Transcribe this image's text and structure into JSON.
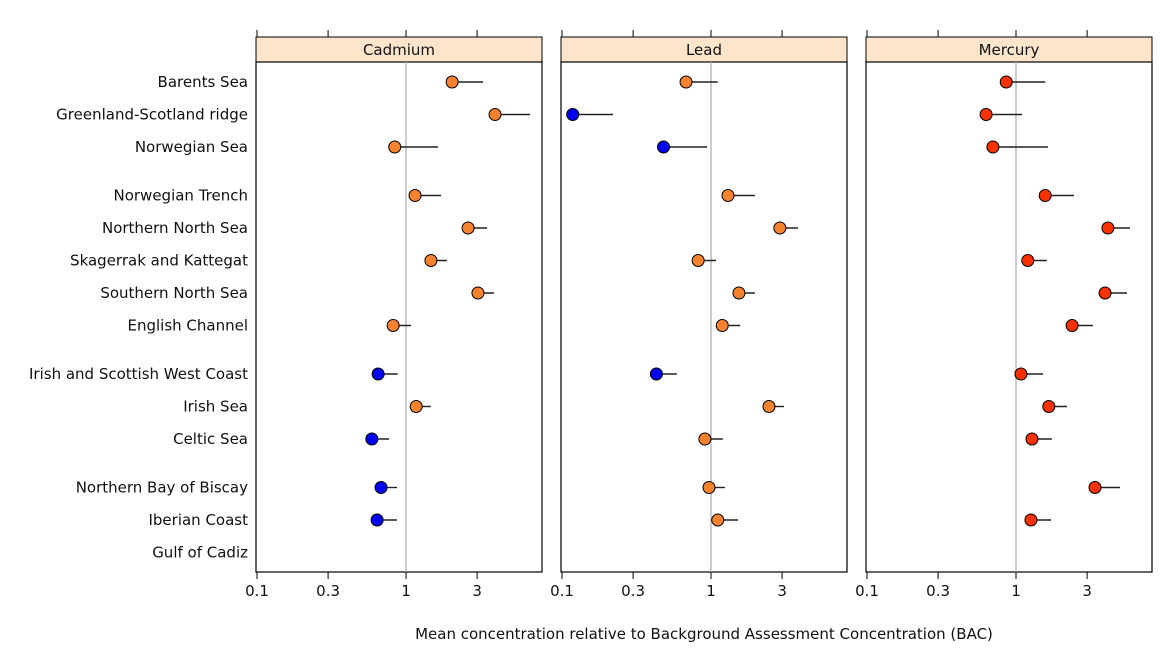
{
  "chart_data": {
    "type": "scatter",
    "subtype": "dot-plot with upper confidence bars",
    "xlabel": "Mean concentration relative to Background Assessment Concentration (BAC)",
    "x_scale": "log",
    "xlim": [
      0.1,
      8.2
    ],
    "x_ticks": [
      0.1,
      0.3,
      1,
      3
    ],
    "x_tick_labels": [
      "0.1",
      "0.3",
      "1",
      "3"
    ],
    "reference_line": 1,
    "grid": false,
    "colors": {
      "blue": "#0000ee",
      "orange": "#f5822e",
      "red": "#f53200",
      "strip": "#fde5cc",
      "reference": "#b0b0b0"
    },
    "categories": [
      "Barents Sea",
      "Greenland-Scotland ridge",
      "Norwegian Sea",
      "Norwegian Trench",
      "Northern North Sea",
      "Skagerrak and Kattegat",
      "Southern North Sea",
      "English Channel",
      "Irish and Scottish West Coast",
      "Irish Sea",
      "Celtic Sea",
      "Northern Bay of Biscay",
      "Iberian Coast",
      "Gulf of Cadiz"
    ],
    "groups": [
      [
        0,
        1,
        2
      ],
      [
        3,
        4,
        5,
        6,
        7
      ],
      [
        8,
        9,
        10
      ],
      [
        11,
        12,
        13
      ]
    ],
    "panels": [
      {
        "title": "Cadmium",
        "points": [
          {
            "mean": 2.04,
            "upper": 3.29,
            "color": "orange"
          },
          {
            "mean": 3.96,
            "upper": 6.8,
            "color": "orange"
          },
          {
            "mean": 0.84,
            "upper": 1.64,
            "color": "orange"
          },
          {
            "mean": 1.15,
            "upper": 1.72,
            "color": "orange"
          },
          {
            "mean": 2.61,
            "upper": 3.5,
            "color": "orange"
          },
          {
            "mean": 1.47,
            "upper": 1.88,
            "color": "orange"
          },
          {
            "mean": 3.04,
            "upper": 3.9,
            "color": "orange"
          },
          {
            "mean": 0.82,
            "upper": 1.08,
            "color": "orange"
          },
          {
            "mean": 0.65,
            "upper": 0.88,
            "color": "blue"
          },
          {
            "mean": 1.17,
            "upper": 1.47,
            "color": "orange"
          },
          {
            "mean": 0.59,
            "upper": 0.77,
            "color": "blue"
          },
          {
            "mean": 0.68,
            "upper": 0.87,
            "color": "blue"
          },
          {
            "mean": 0.64,
            "upper": 0.87,
            "color": "blue"
          },
          null
        ]
      },
      {
        "title": "Lead",
        "points": [
          {
            "mean": 0.68,
            "upper": 1.11,
            "color": "orange"
          },
          {
            "mean": 0.118,
            "upper": 0.22,
            "color": "blue"
          },
          {
            "mean": 0.48,
            "upper": 0.94,
            "color": "blue"
          },
          {
            "mean": 1.3,
            "upper": 1.97,
            "color": "orange"
          },
          {
            "mean": 2.9,
            "upper": 3.84,
            "color": "orange"
          },
          {
            "mean": 0.82,
            "upper": 1.08,
            "color": "orange"
          },
          {
            "mean": 1.54,
            "upper": 1.97,
            "color": "orange"
          },
          {
            "mean": 1.19,
            "upper": 1.57,
            "color": "orange"
          },
          {
            "mean": 0.43,
            "upper": 0.59,
            "color": "blue"
          },
          {
            "mean": 2.45,
            "upper": 3.09,
            "color": "orange"
          },
          {
            "mean": 0.91,
            "upper": 1.2,
            "color": "orange"
          },
          {
            "mean": 0.97,
            "upper": 1.24,
            "color": "orange"
          },
          {
            "mean": 1.11,
            "upper": 1.52,
            "color": "orange"
          },
          null
        ]
      },
      {
        "title": "Mercury",
        "points": [
          {
            "mean": 0.86,
            "upper": 1.57,
            "color": "red"
          },
          {
            "mean": 0.63,
            "upper": 1.1,
            "color": "red"
          },
          {
            "mean": 0.7,
            "upper": 1.64,
            "color": "red"
          },
          {
            "mean": 1.57,
            "upper": 2.45,
            "color": "red"
          },
          {
            "mean": 4.14,
            "upper": 5.82,
            "color": "red"
          },
          {
            "mean": 1.2,
            "upper": 1.61,
            "color": "red"
          },
          {
            "mean": 3.96,
            "upper": 5.56,
            "color": "red"
          },
          {
            "mean": 2.38,
            "upper": 3.29,
            "color": "red"
          },
          {
            "mean": 1.08,
            "upper": 1.52,
            "color": "red"
          },
          {
            "mean": 1.66,
            "upper": 2.2,
            "color": "red"
          },
          {
            "mean": 1.28,
            "upper": 1.74,
            "color": "red"
          },
          {
            "mean": 3.39,
            "upper": 4.99,
            "color": "red"
          },
          {
            "mean": 1.26,
            "upper": 1.72,
            "color": "red"
          },
          null
        ]
      }
    ]
  }
}
